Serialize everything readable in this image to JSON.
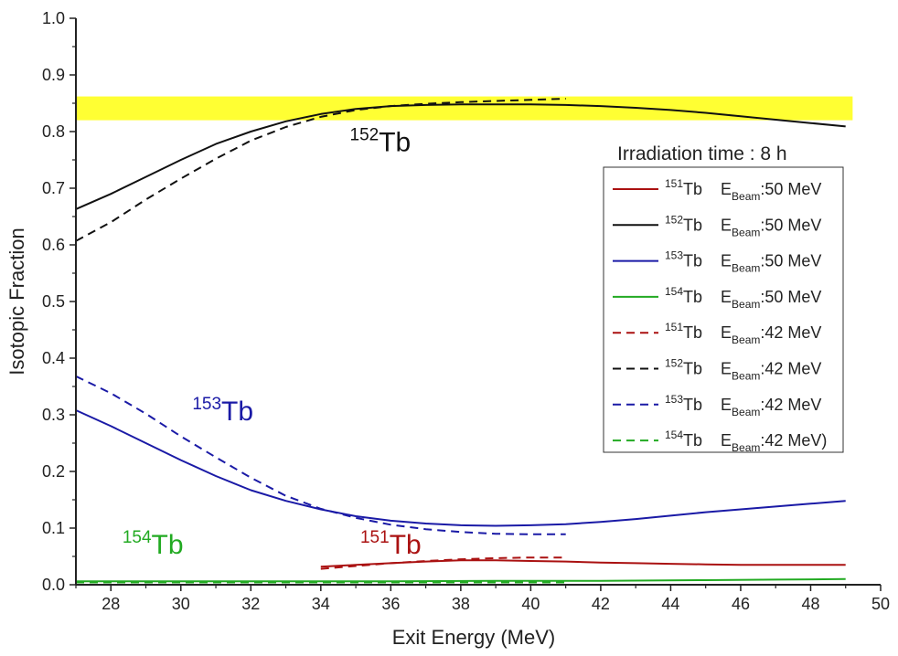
{
  "chart_data": {
    "type": "line",
    "title": "",
    "xlabel": "Exit Energy (MeV)",
    "ylabel": "Isotopic Fraction",
    "xlim": [
      27,
      50
    ],
    "ylim": [
      0.0,
      1.0
    ],
    "xticks": [
      "28",
      "30",
      "32",
      "34",
      "36",
      "38",
      "40",
      "42",
      "44",
      "46",
      "48",
      "50"
    ],
    "yticks": [
      "0.0",
      "0.1",
      "0.2",
      "0.3",
      "0.4",
      "0.5",
      "0.6",
      "0.7",
      "0.8",
      "0.9",
      "1.0"
    ],
    "band": {
      "y_from": 0.82,
      "y_to": 0.862,
      "x_from": 27,
      "x_to": 49.2,
      "color": "#FFFF33"
    },
    "legend": {
      "title": "Irradiation time : 8 h",
      "position": "right",
      "entries": [
        {
          "iso": "151",
          "tb": "Tb",
          "e": "E",
          "beam": "Beam",
          "energy": ":50 MeV"
        },
        {
          "iso": "152",
          "tb": "Tb",
          "e": "E",
          "beam": "Beam",
          "energy": ":50 MeV"
        },
        {
          "iso": "153",
          "tb": "Tb",
          "e": "E",
          "beam": "Beam",
          "energy": ":50 MeV"
        },
        {
          "iso": "154",
          "tb": "Tb",
          "e": "E",
          "beam": "Beam",
          "energy": ":50 MeV"
        },
        {
          "iso": "151",
          "tb": "Tb",
          "e": "E",
          "beam": "Beam",
          "energy": ":42 MeV"
        },
        {
          "iso": "152",
          "tb": "Tb",
          "e": "E",
          "beam": "Beam",
          "energy": ":42 MeV"
        },
        {
          "iso": "153",
          "tb": "Tb",
          "e": "E",
          "beam": "Beam",
          "energy": ":42 MeV"
        },
        {
          "iso": "154",
          "tb": "Tb",
          "e": "E",
          "beam": "Beam",
          "energy": ":42 MeV)"
        }
      ]
    },
    "annotations": [
      {
        "iso": "152",
        "text": "Tb",
        "x": 35.7,
        "y": 0.765,
        "color": "#111111"
      },
      {
        "iso": "153",
        "text": "Tb",
        "x": 31.2,
        "y": 0.29,
        "color": "#1a1aa6"
      },
      {
        "iso": "154",
        "text": "Tb",
        "x": 29.2,
        "y": 0.055,
        "color": "#22aa22"
      },
      {
        "iso": "151",
        "text": "Tb",
        "x": 36.0,
        "y": 0.055,
        "color": "#aa1111"
      }
    ],
    "series": [
      {
        "name": "151Tb EBeam:50 MeV",
        "color": "#aa1111",
        "dash": false,
        "x": [
          34,
          35,
          36,
          37,
          38,
          39,
          40,
          41,
          42,
          43,
          44,
          45,
          46,
          47,
          48,
          49
        ],
        "y": [
          0.032,
          0.035,
          0.038,
          0.041,
          0.043,
          0.043,
          0.042,
          0.041,
          0.039,
          0.038,
          0.037,
          0.036,
          0.035,
          0.035,
          0.035,
          0.035
        ]
      },
      {
        "name": "152Tb EBeam:50 MeV",
        "color": "#111111",
        "dash": false,
        "x": [
          27,
          28,
          29,
          30,
          31,
          32,
          33,
          34,
          35,
          36,
          37,
          38,
          39,
          40,
          41,
          42,
          43,
          44,
          45,
          46,
          47,
          48,
          49
        ],
        "y": [
          0.663,
          0.69,
          0.72,
          0.75,
          0.778,
          0.8,
          0.818,
          0.831,
          0.84,
          0.845,
          0.847,
          0.848,
          0.848,
          0.848,
          0.847,
          0.845,
          0.842,
          0.838,
          0.833,
          0.827,
          0.821,
          0.815,
          0.809
        ]
      },
      {
        "name": "153Tb EBeam:50 MeV",
        "color": "#1a1aa6",
        "dash": false,
        "x": [
          27,
          28,
          29,
          30,
          31,
          32,
          33,
          34,
          35,
          36,
          37,
          38,
          39,
          40,
          41,
          42,
          43,
          44,
          45,
          46,
          47,
          48,
          49
        ],
        "y": [
          0.308,
          0.28,
          0.25,
          0.22,
          0.192,
          0.167,
          0.148,
          0.133,
          0.121,
          0.113,
          0.108,
          0.105,
          0.104,
          0.105,
          0.107,
          0.111,
          0.116,
          0.122,
          0.128,
          0.133,
          0.138,
          0.143,
          0.148
        ]
      },
      {
        "name": "154Tb EBeam:50 MeV",
        "color": "#22aa22",
        "dash": false,
        "x": [
          27,
          30,
          33,
          36,
          39,
          42,
          45,
          47,
          49
        ],
        "y": [
          0.006,
          0.006,
          0.006,
          0.006,
          0.007,
          0.007,
          0.008,
          0.009,
          0.01
        ]
      },
      {
        "name": "151Tb EBeam:42 MeV",
        "color": "#aa1111",
        "dash": true,
        "x": [
          34,
          35,
          36,
          37,
          38,
          39,
          40,
          41
        ],
        "y": [
          0.028,
          0.033,
          0.038,
          0.042,
          0.045,
          0.047,
          0.048,
          0.048
        ]
      },
      {
        "name": "152Tb EBeam:42 MeV",
        "color": "#111111",
        "dash": true,
        "x": [
          27,
          28,
          29,
          30,
          31,
          32,
          33,
          34,
          35,
          36,
          37,
          38,
          39,
          40,
          41
        ],
        "y": [
          0.607,
          0.64,
          0.68,
          0.717,
          0.752,
          0.784,
          0.808,
          0.826,
          0.838,
          0.845,
          0.849,
          0.852,
          0.854,
          0.856,
          0.858
        ]
      },
      {
        "name": "153Tb EBeam:42 MeV",
        "color": "#1a1aa6",
        "dash": true,
        "x": [
          27,
          28,
          29,
          30,
          31,
          32,
          33,
          34,
          35,
          36,
          37,
          38,
          39,
          40,
          41
        ],
        "y": [
          0.368,
          0.338,
          0.302,
          0.262,
          0.225,
          0.189,
          0.157,
          0.134,
          0.118,
          0.106,
          0.098,
          0.093,
          0.09,
          0.089,
          0.089
        ]
      },
      {
        "name": "154Tb EBeam:42 MeV",
        "color": "#22aa22",
        "dash": true,
        "x": [
          27,
          30,
          33,
          36,
          39,
          41
        ],
        "y": [
          0.004,
          0.004,
          0.004,
          0.004,
          0.004,
          0.004
        ]
      }
    ]
  }
}
